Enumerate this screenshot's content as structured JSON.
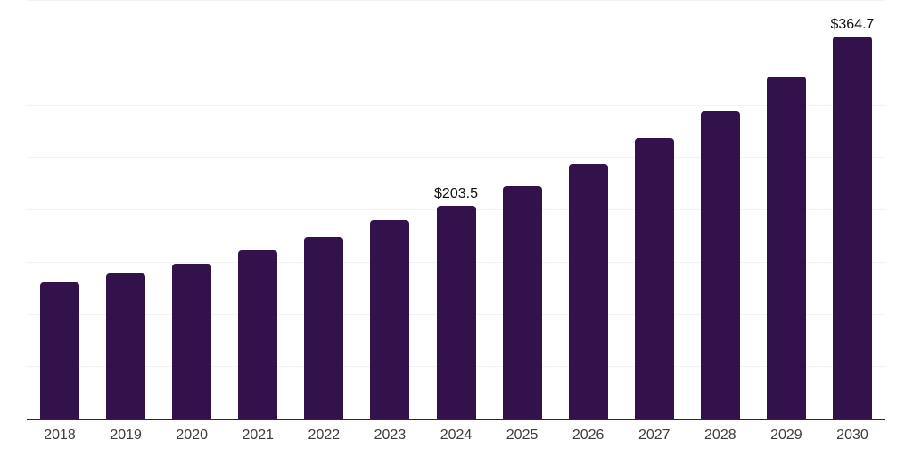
{
  "chart_data": {
    "type": "bar",
    "title": "",
    "xlabel": "",
    "ylabel": "",
    "categories": [
      "2018",
      "2019",
      "2020",
      "2021",
      "2022",
      "2023",
      "2024",
      "2025",
      "2026",
      "2027",
      "2028",
      "2029",
      "2030"
    ],
    "values": [
      129.9,
      138.9,
      148.4,
      160.6,
      173.6,
      189.4,
      203.5,
      221.9,
      243.3,
      268.1,
      293.7,
      327.1,
      364.7
    ],
    "data_labels": {
      "2024": "$203.5",
      "2030": "$364.7"
    },
    "ylim": [
      0,
      400
    ],
    "gridline_interval": 50,
    "grid": true,
    "legend": false,
    "y_tick_labels_visible": false
  },
  "colors": {
    "bar": "#33124b",
    "grid_line": "#f2f2f2",
    "axis_line": "#2a2a2a",
    "tick_label": "#3d3d3d",
    "data_label": "#111111",
    "background": "#ffffff"
  }
}
